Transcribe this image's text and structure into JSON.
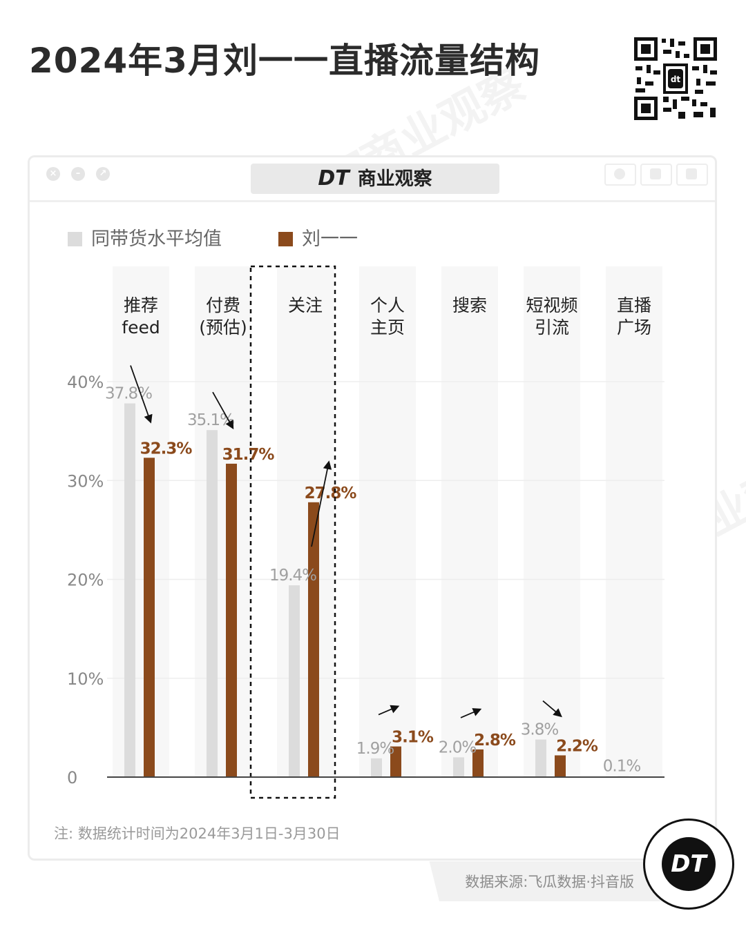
{
  "title": "2024年3月刘一一直播流量结构",
  "window": {
    "title_brand": "DT",
    "title_text": "商业观察"
  },
  "legend": [
    {
      "name": "同带货水平均值",
      "color": "#dcdcdc"
    },
    {
      "name": "刘一一",
      "color": "#8b4a1c"
    }
  ],
  "note": "注: 数据统计时间为2024年3月1日-3月30日",
  "source": "数据来源:飞瓜数据·抖音版",
  "badge": "DT",
  "watermark_text": "DT商业观察",
  "chart_data": {
    "type": "bar",
    "categories": [
      [
        "推荐",
        "feed"
      ],
      [
        "付费",
        "(预估)"
      ],
      [
        "关注"
      ],
      [
        "个人",
        "主页"
      ],
      [
        "搜索"
      ],
      [
        "短视频",
        "引流"
      ],
      [
        "直播",
        "广场"
      ]
    ],
    "series": [
      {
        "name": "同带货水平均值",
        "values": [
          37.8,
          35.1,
          19.4,
          1.9,
          2.0,
          3.8,
          0.1
        ],
        "labels": [
          "37.8%",
          "35.1%",
          "19.4%",
          "1.9%",
          "2.0%",
          "3.8%",
          "0.1%"
        ]
      },
      {
        "name": "刘一一",
        "values": [
          32.3,
          31.7,
          27.8,
          3.1,
          2.8,
          2.2,
          null
        ],
        "labels": [
          "32.3%",
          "31.7%",
          "27.8%",
          "3.1%",
          "2.8%",
          "2.2%",
          ""
        ]
      }
    ],
    "yticks": [
      0,
      10,
      20,
      30,
      40
    ],
    "ytick_labels": [
      "0",
      "10%",
      "20%",
      "30%",
      "40%"
    ],
    "ylim": [
      0,
      40
    ],
    "highlighted_category": "关注",
    "trend": [
      "down",
      "down",
      "up",
      "up",
      "up",
      "down",
      ""
    ],
    "colors": {
      "average": "#dcdcdc",
      "liuyiyi": "#8b4a1c",
      "average_label": "#a0a0a0",
      "liuyiyi_label": "#8b4a1c"
    }
  }
}
